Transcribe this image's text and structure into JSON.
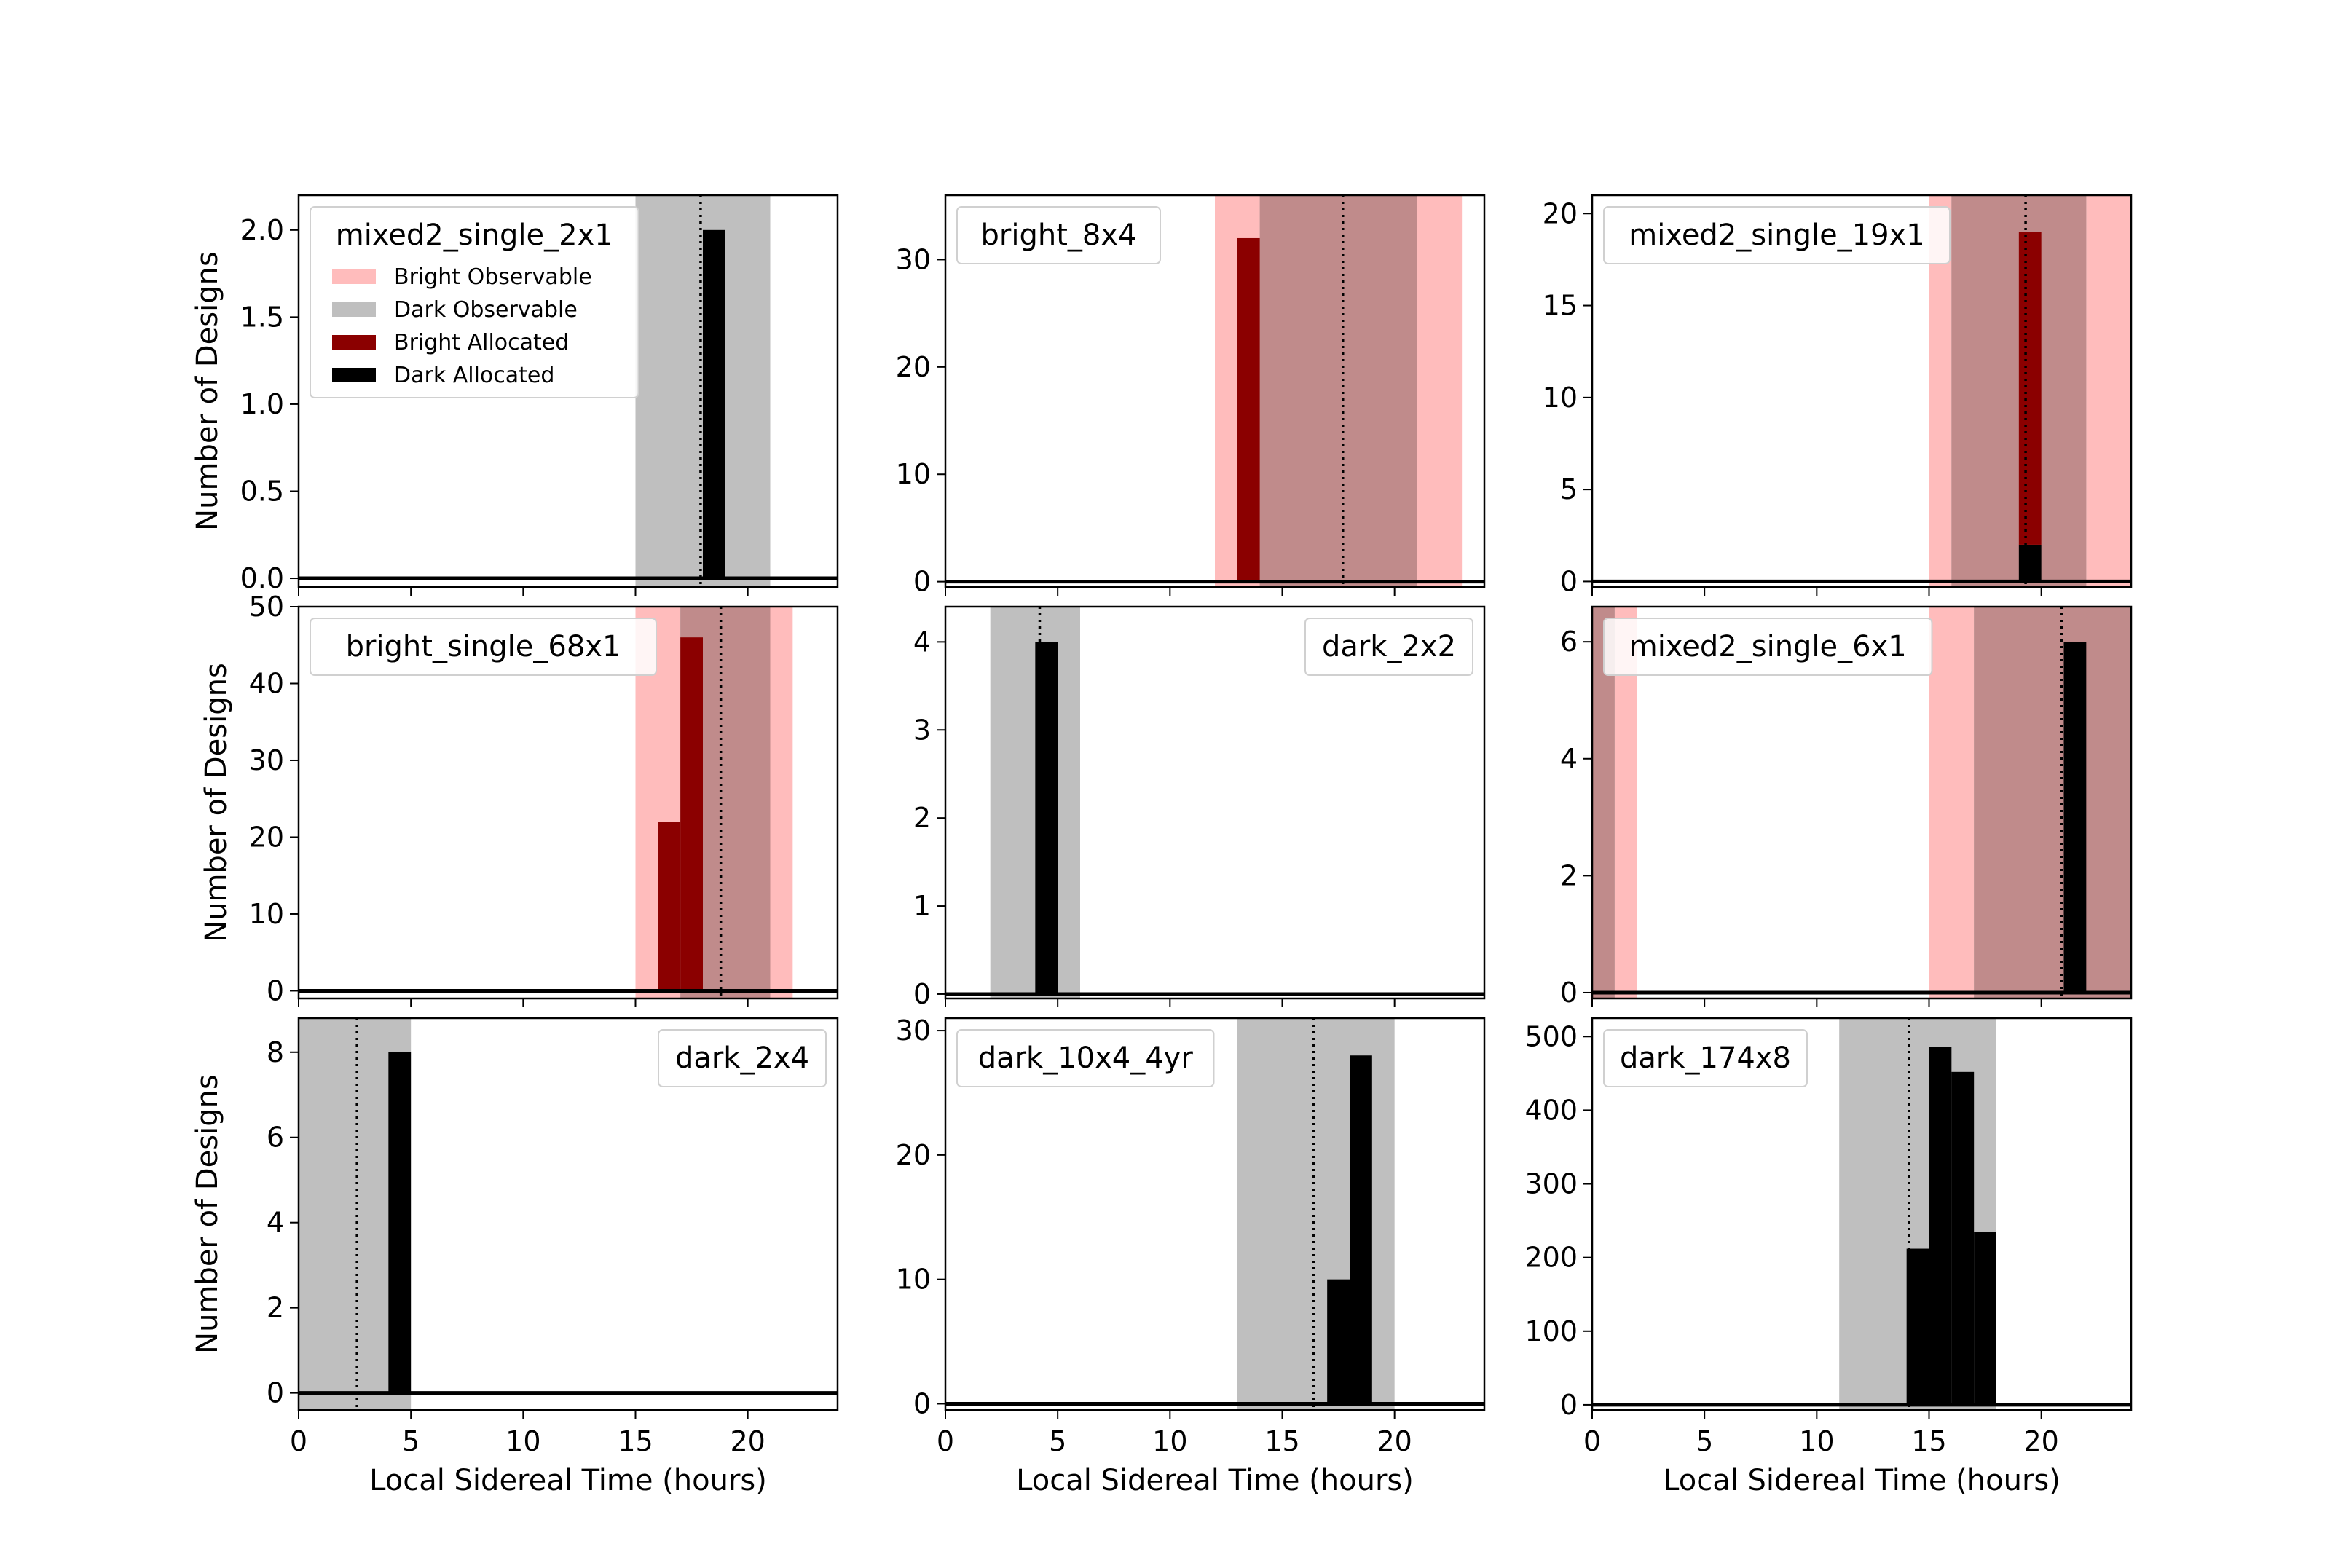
{
  "figure": {
    "ylabel": "Number of Designs",
    "xlabel": "Local Sidereal Time (hours)",
    "xlim": [
      0,
      24
    ],
    "xticks": [
      0,
      5,
      10,
      15,
      20
    ],
    "legend_entries": [
      {
        "label": "Bright Observable",
        "color": "#ffbcbc"
      },
      {
        "label": "Dark Observable",
        "color": "#bfbfbf"
      },
      {
        "label": "Bright Allocated",
        "color": "#8b0000"
      },
      {
        "label": "Dark Allocated",
        "color": "#000000"
      }
    ],
    "colors": {
      "bright_observable": "#ffbcbc",
      "dark_observable": "#bfbfbf",
      "overlap": "#c08b8b",
      "bright_allocated": "#8b0000",
      "dark_allocated": "#000000"
    }
  },
  "chart_data": [
    {
      "type": "bar",
      "title": "mixed2_single_2x1",
      "legend_loc": "upper-left",
      "show_legend": true,
      "ylim": [
        -0.05,
        2.2
      ],
      "yticks": [
        0.0,
        0.5,
        1.0,
        1.5,
        2.0
      ],
      "ytick_labels": [
        "0.0",
        "0.5",
        "1.0",
        "1.5",
        "2.0"
      ],
      "bright_observable": [],
      "dark_observable": [
        [
          15,
          21
        ]
      ],
      "bins": [
        {
          "x0": 18,
          "x1": 19,
          "bright": 0,
          "dark": 2
        }
      ],
      "vline": 17.9
    },
    {
      "type": "bar",
      "title": "bright_8x4",
      "legend_loc": "upper-left",
      "show_legend": false,
      "ylim": [
        -0.5,
        36
      ],
      "yticks": [
        0,
        10,
        20,
        30
      ],
      "ytick_labels": [
        "0",
        "10",
        "20",
        "30"
      ],
      "bright_observable": [
        [
          12,
          23
        ]
      ],
      "dark_observable": [
        [
          14,
          21
        ]
      ],
      "bins": [
        {
          "x0": 13,
          "x1": 14,
          "bright": 32,
          "dark": 0
        }
      ],
      "vline": 17.7
    },
    {
      "type": "bar",
      "title": "mixed2_single_19x1",
      "legend_loc": "upper-left",
      "show_legend": false,
      "ylim": [
        -0.3,
        21
      ],
      "yticks": [
        0,
        5,
        10,
        15,
        20
      ],
      "ytick_labels": [
        "0",
        "5",
        "10",
        "15",
        "20"
      ],
      "bright_observable": [
        [
          15,
          24
        ]
      ],
      "dark_observable": [
        [
          16,
          22
        ]
      ],
      "bins": [
        {
          "x0": 19,
          "x1": 20,
          "bright": 17,
          "dark": 2
        }
      ],
      "vline": 19.3
    },
    {
      "type": "bar",
      "title": "bright_single_68x1",
      "legend_loc": "upper-left",
      "show_legend": false,
      "ylim": [
        -1,
        50
      ],
      "yticks": [
        0,
        10,
        20,
        30,
        40,
        50
      ],
      "ytick_labels": [
        "0",
        "10",
        "20",
        "30",
        "40",
        "50"
      ],
      "bright_observable": [
        [
          15,
          22
        ]
      ],
      "dark_observable": [
        [
          17,
          21
        ]
      ],
      "bins": [
        {
          "x0": 16,
          "x1": 17,
          "bright": 22,
          "dark": 0
        },
        {
          "x0": 17,
          "x1": 18,
          "bright": 46,
          "dark": 0
        }
      ],
      "vline": 18.8
    },
    {
      "type": "bar",
      "title": "dark_2x2",
      "legend_loc": "upper-right",
      "show_legend": false,
      "ylim": [
        -0.05,
        4.4
      ],
      "yticks": [
        0,
        1,
        2,
        3,
        4
      ],
      "ytick_labels": [
        "0",
        "1",
        "2",
        "3",
        "4"
      ],
      "bright_observable": [],
      "dark_observable": [
        [
          2,
          6
        ]
      ],
      "bins": [
        {
          "x0": 4,
          "x1": 5,
          "bright": 0,
          "dark": 4
        }
      ],
      "vline": 4.2
    },
    {
      "type": "bar",
      "title": "mixed2_single_6x1",
      "legend_loc": "upper-left",
      "show_legend": false,
      "ylim": [
        -0.1,
        6.6
      ],
      "yticks": [
        0,
        2,
        4,
        6
      ],
      "ytick_labels": [
        "0",
        "2",
        "4",
        "6"
      ],
      "bright_observable": [
        [
          0,
          2
        ],
        [
          15,
          24
        ]
      ],
      "dark_observable": [
        [
          0,
          1
        ],
        [
          17,
          24
        ]
      ],
      "bins": [
        {
          "x0": 21,
          "x1": 22,
          "bright": 0,
          "dark": 6
        }
      ],
      "vline": 20.9
    },
    {
      "type": "bar",
      "title": "dark_2x4",
      "legend_loc": "upper-right",
      "show_legend": false,
      "ylim": [
        -0.4,
        8.8
      ],
      "yticks": [
        0,
        2,
        4,
        6,
        8
      ],
      "ytick_labels": [
        "0",
        "2",
        "4",
        "6",
        "8"
      ],
      "bright_observable": [],
      "dark_observable": [
        [
          0,
          5
        ]
      ],
      "bins": [
        {
          "x0": 4,
          "x1": 5,
          "bright": 0,
          "dark": 8
        }
      ],
      "vline": 2.6
    },
    {
      "type": "bar",
      "title": "dark_10x4_4yr",
      "legend_loc": "upper-left",
      "show_legend": false,
      "ylim": [
        -0.5,
        31
      ],
      "yticks": [
        0,
        10,
        20,
        30
      ],
      "ytick_labels": [
        "0",
        "10",
        "20",
        "30"
      ],
      "bright_observable": [],
      "dark_observable": [
        [
          13,
          20
        ]
      ],
      "bins": [
        {
          "x0": 17,
          "x1": 18,
          "bright": 0,
          "dark": 10
        },
        {
          "x0": 18,
          "x1": 19,
          "bright": 0,
          "dark": 28
        }
      ],
      "vline": 16.4
    },
    {
      "type": "bar",
      "title": "dark_174x8",
      "legend_loc": "upper-left",
      "show_legend": false,
      "ylim": [
        -7,
        525
      ],
      "yticks": [
        0,
        100,
        200,
        300,
        400,
        500
      ],
      "ytick_labels": [
        "0",
        "100",
        "200",
        "300",
        "400",
        "500"
      ],
      "bright_observable": [],
      "dark_observable": [
        [
          11,
          18
        ]
      ],
      "bins": [
        {
          "x0": 14,
          "x1": 15,
          "bright": 0,
          "dark": 212
        },
        {
          "x0": 15,
          "x1": 16,
          "bright": 0,
          "dark": 486
        },
        {
          "x0": 16,
          "x1": 17,
          "bright": 0,
          "dark": 452
        },
        {
          "x0": 17,
          "x1": 18,
          "bright": 0,
          "dark": 235
        }
      ],
      "vline": 14.1
    }
  ]
}
